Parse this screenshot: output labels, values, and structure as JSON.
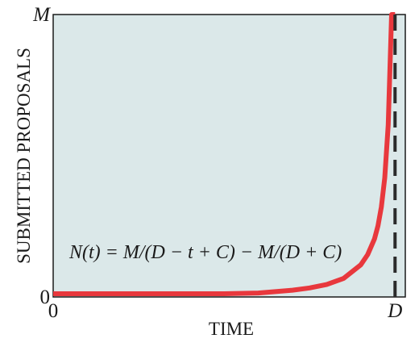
{
  "chart_data": {
    "type": "line",
    "title": "",
    "xlabel": "TIME",
    "ylabel": "SUBMITTED PROPOSALS",
    "x_ticks": [
      {
        "value": 0,
        "label": "0",
        "italic": false
      },
      {
        "value": 1,
        "label": "D",
        "italic": true
      }
    ],
    "y_ticks": [
      {
        "value": 0,
        "label": "0",
        "italic": false
      },
      {
        "value": 1,
        "label": "M",
        "italic": true
      }
    ],
    "xlim": [
      0,
      1.03
    ],
    "ylim": [
      0,
      1
    ],
    "annotation": "N(t) = M/(D − t + C) − M/(D + C)",
    "series": [
      {
        "color": "#e8383d",
        "x": [
          0,
          0.1,
          0.2,
          0.3,
          0.4,
          0.5,
          0.6,
          0.7,
          0.75,
          0.8,
          0.85,
          0.9,
          0.92,
          0.94,
          0.95,
          0.96,
          0.97,
          0.98,
          0.99,
          1.0
        ],
        "y": [
          0,
          0.001,
          0.0024,
          0.0041,
          0.0064,
          0.0096,
          0.014,
          0.024,
          0.032,
          0.044,
          0.066,
          0.114,
          0.15,
          0.206,
          0.252,
          0.319,
          0.422,
          0.609,
          1.0,
          1.0
        ]
      }
    ],
    "reference_lines": [
      {
        "orientation": "vertical",
        "x": 1.0,
        "style": "dashed",
        "color": "#2b2b2b"
      }
    ],
    "background": "#dbe8e9",
    "grid": false
  }
}
